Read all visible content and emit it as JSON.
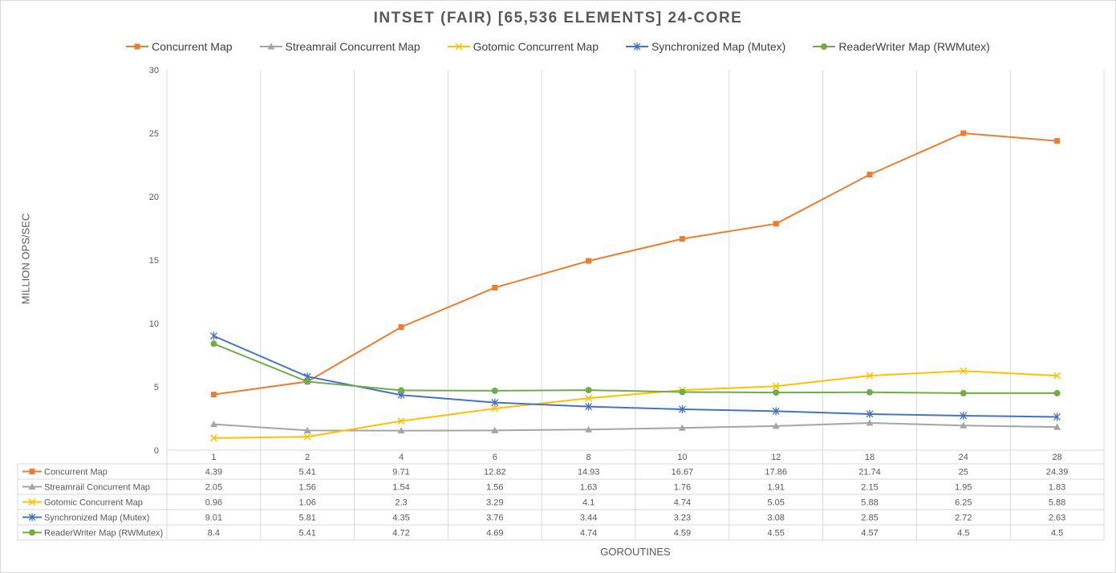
{
  "chart_data": {
    "type": "line",
    "title": "INTSET (FAIR) [65,536 ELEMENTS] 24-CORE",
    "xlabel": "GOROUTINES",
    "ylabel": "MILLION OPS/SEC",
    "ylim": [
      0,
      30
    ],
    "yticks": [
      "0",
      "5",
      "10",
      "15",
      "20",
      "25",
      "30"
    ],
    "categories": [
      "1",
      "2",
      "4",
      "6",
      "8",
      "10",
      "12",
      "18",
      "24",
      "28"
    ],
    "grid": "vertical",
    "legend_position": "top",
    "data_table": true,
    "series": [
      {
        "name": "Concurrent Map",
        "color": "#ed7d31",
        "marker": "square",
        "values": [
          4.39,
          5.41,
          9.71,
          12.82,
          14.93,
          16.67,
          17.86,
          21.74,
          25,
          24.39
        ],
        "labels": [
          "4.39",
          "5.41",
          "9.71",
          "12.82",
          "14.93",
          "16.67",
          "17.86",
          "21.74",
          "25",
          "24.39"
        ]
      },
      {
        "name": "Streamrail Concurrent Map",
        "color": "#a5a5a5",
        "marker": "triangle",
        "values": [
          2.05,
          1.56,
          1.54,
          1.56,
          1.63,
          1.76,
          1.91,
          2.15,
          1.95,
          1.83
        ],
        "labels": [
          "2.05",
          "1.56",
          "1.54",
          "1.56",
          "1.63",
          "1.76",
          "1.91",
          "2.15",
          "1.95",
          "1.83"
        ]
      },
      {
        "name": "Gotomic Concurrent Map",
        "color": "#ffc000",
        "marker": "x",
        "values": [
          0.96,
          1.06,
          2.3,
          3.29,
          4.1,
          4.74,
          5.05,
          5.88,
          6.25,
          5.88
        ],
        "labels": [
          "0.96",
          "1.06",
          "2.3",
          "3.29",
          "4.1",
          "4.74",
          "5.05",
          "5.88",
          "6.25",
          "5.88"
        ]
      },
      {
        "name": "Synchronized Map (Mutex)",
        "color": "#4472c4",
        "marker": "star",
        "values": [
          9.01,
          5.81,
          4.35,
          3.76,
          3.44,
          3.23,
          3.08,
          2.85,
          2.72,
          2.63
        ],
        "labels": [
          "9.01",
          "5.81",
          "4.35",
          "3.76",
          "3.44",
          "3.23",
          "3.08",
          "2.85",
          "2.72",
          "2.63"
        ]
      },
      {
        "name": "ReaderWriter Map (RWMutex)",
        "color": "#70ad47",
        "marker": "circle",
        "values": [
          8.4,
          5.41,
          4.72,
          4.69,
          4.74,
          4.59,
          4.55,
          4.57,
          4.5,
          4.5
        ],
        "labels": [
          "8.4",
          "5.41",
          "4.72",
          "4.69",
          "4.74",
          "4.59",
          "4.55",
          "4.57",
          "4.5",
          "4.5"
        ]
      }
    ]
  }
}
